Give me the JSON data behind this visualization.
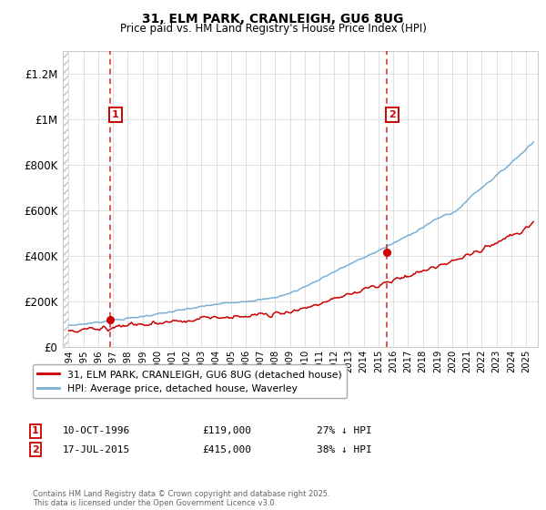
{
  "title": "31, ELM PARK, CRANLEIGH, GU6 8UG",
  "subtitle": "Price paid vs. HM Land Registry's House Price Index (HPI)",
  "ylim": [
    0,
    1300000
  ],
  "yticks": [
    0,
    200000,
    400000,
    600000,
    800000,
    1000000,
    1200000
  ],
  "ytick_labels": [
    "£0",
    "£200K",
    "£400K",
    "£600K",
    "£800K",
    "£1M",
    "£1.2M"
  ],
  "xlim_left": 1993.6,
  "xlim_right": 2025.8,
  "sale1_x": 1996.78,
  "sale1_y": 119000,
  "sale1_date": "10-OCT-1996",
  "sale1_price": "£119,000",
  "sale1_hpi": "27% ↓ HPI",
  "sale2_x": 2015.54,
  "sale2_y": 415000,
  "sale2_date": "17-JUL-2015",
  "sale2_price": "£415,000",
  "sale2_hpi": "38% ↓ HPI",
  "red_line_color": "#cc0000",
  "blue_line_color": "#7ab0d4",
  "grid_color": "#e0e0e0",
  "background_color": "#ffffff",
  "legend_red_label": "31, ELM PARK, CRANLEIGH, GU6 8UG (detached house)",
  "legend_blue_label": "HPI: Average price, detached house, Waverley",
  "footer_text": "Contains HM Land Registry data © Crown copyright and database right 2025.\nThis data is licensed under the Open Government Licence v3.0."
}
